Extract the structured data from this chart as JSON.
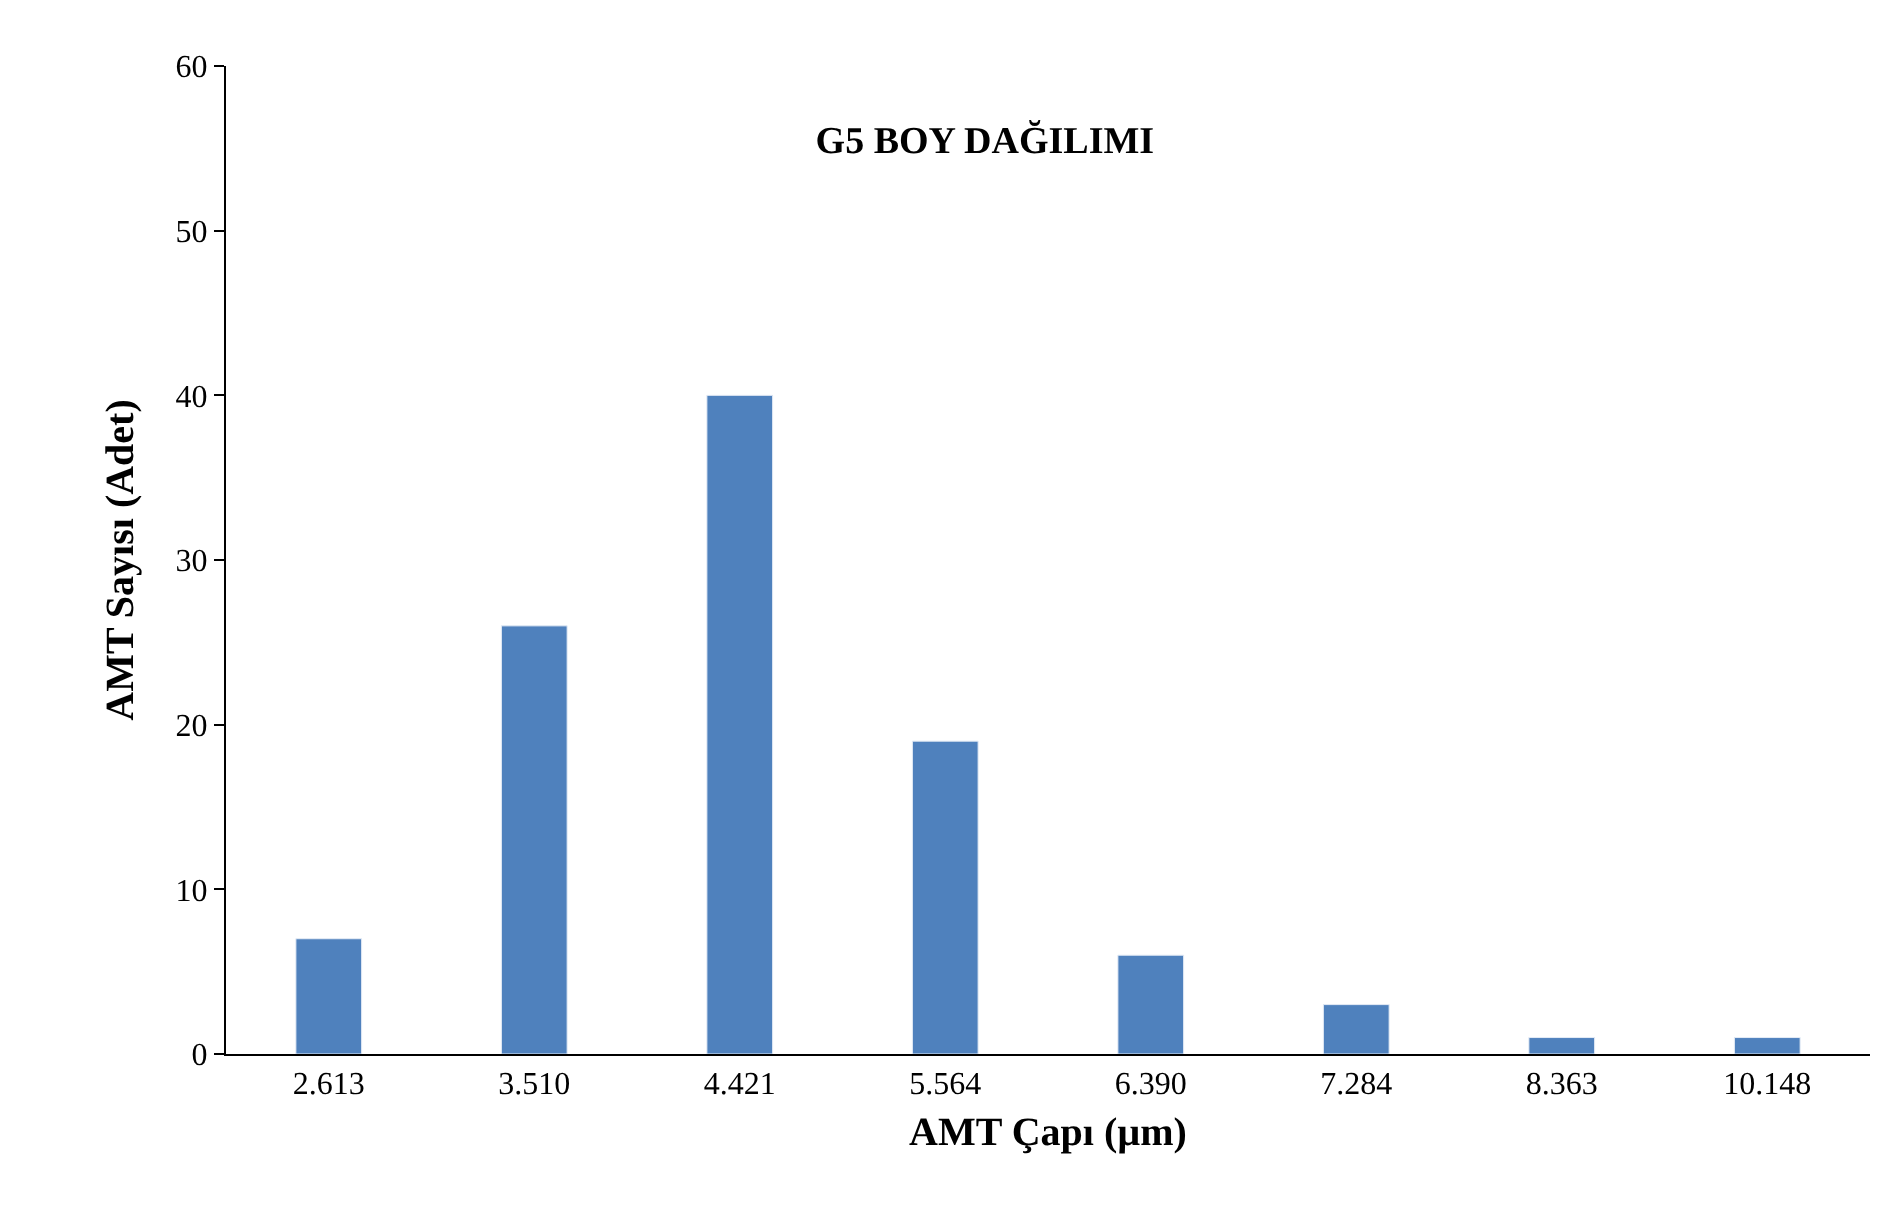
{
  "chart_data": {
    "type": "bar",
    "title": "G5 BOY DAĞILIMI",
    "xlabel": "AMT Çapı (µm)",
    "ylabel": "AMT Sayısı (Adet)",
    "categories": [
      "2.613",
      "3.510",
      "4.421",
      "5.564",
      "6.390",
      "7.284",
      "8.363",
      "10.148"
    ],
    "values": [
      7,
      26,
      40,
      19,
      6,
      3,
      1,
      1
    ],
    "color": "#4f81bd",
    "ylim": [
      0,
      60
    ],
    "yticks": [
      0,
      10,
      20,
      30,
      40,
      50,
      60
    ],
    "legend": false
  }
}
